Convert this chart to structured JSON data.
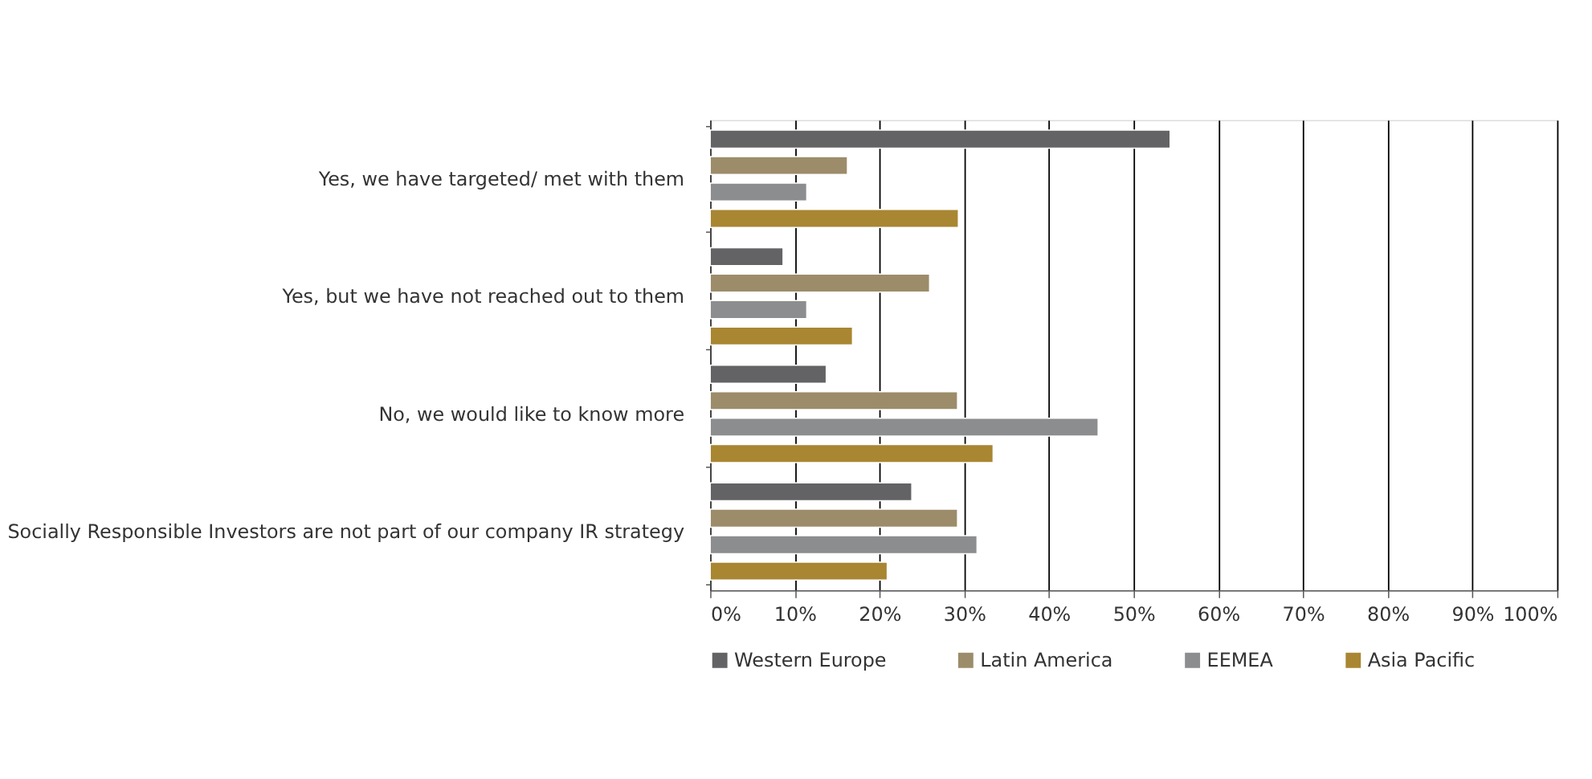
{
  "chart_data": {
    "type": "bar",
    "orientation": "horizontal",
    "categories": [
      "Yes, we have targeted/ met with them",
      "Yes, but we have not reached out to them",
      "No, we would like to know more",
      "Socially Responsible Investors are not part of our company IR strategy"
    ],
    "series": [
      {
        "name": "Western Europe",
        "color": "#636365",
        "values": [
          54.3,
          8.6,
          13.7,
          23.8
        ]
      },
      {
        "name": "Latin America",
        "color": "#9c8c6a",
        "values": [
          16.2,
          25.9,
          29.2,
          29.2
        ]
      },
      {
        "name": "EEMEA",
        "color": "#8c8d8f",
        "values": [
          11.4,
          11.4,
          45.8,
          31.5
        ]
      },
      {
        "name": "Asia Pacific",
        "color": "#a88632",
        "values": [
          29.3,
          16.8,
          33.4,
          20.9
        ]
      }
    ],
    "xlim": [
      0,
      100
    ],
    "xticks": [
      {
        "value": 0,
        "label": "0%"
      },
      {
        "value": 10,
        "label": "10%"
      },
      {
        "value": 20,
        "label": "20%"
      },
      {
        "value": 30,
        "label": "30%"
      },
      {
        "value": 40,
        "label": "40%"
      },
      {
        "value": 50,
        "label": "50%"
      },
      {
        "value": 60,
        "label": "60%"
      },
      {
        "value": 70,
        "label": "70%"
      },
      {
        "value": 80,
        "label": "80%"
      },
      {
        "value": 90,
        "label": "90%"
      },
      {
        "value": 100,
        "label": "100%"
      }
    ],
    "grid": "x",
    "legend": "bottom"
  }
}
